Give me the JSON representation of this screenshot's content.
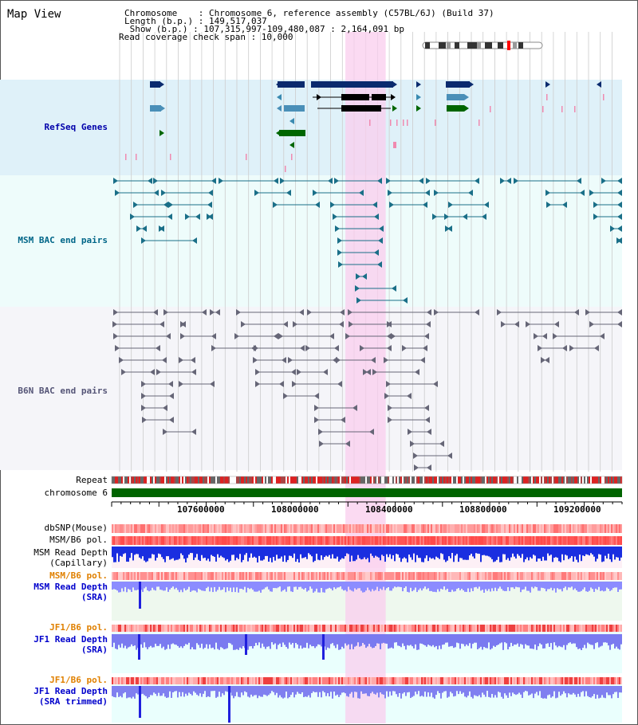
{
  "view": {
    "title": "Map View",
    "header_lines": [
      "Chromosome    : Chromosome 6, reference assembly (C57BL/6J) (Build 37)",
      "Length (b.p.) : 149,517,037",
      " Show (b.p.) : 107,315,997-109,480,087 : 2,164,091 bp",
      "Read coverage check span : 10,000"
    ],
    "range": {
      "start": 107315997,
      "end": 109480087
    },
    "highlight": {
      "start": 108307000,
      "end": 108478000
    }
  },
  "tracks": {
    "refseq": {
      "label": "RefSeq Genes",
      "color": "#0000aa"
    },
    "msm_bac": {
      "label": "MSM BAC end pairs",
      "color": "#006688"
    },
    "b6n_bac": {
      "label": "B6N BAC end pairs",
      "color": "#555577"
    },
    "repeat": {
      "label": "Repeat"
    },
    "chromosome": {
      "label": "chromosome 6"
    },
    "dbsnp": {
      "label": "dbSNP(Mouse)"
    },
    "msm_b6_pol_1": {
      "label": "MSM/B6 pol."
    },
    "msm_depth_cap": {
      "label1": "MSM Read Depth",
      "label2": "(Capillary)"
    },
    "msm_b6_pol_2": {
      "label": "MSM/B6 pol.",
      "color": "#e08000"
    },
    "msm_depth_sra": {
      "label1": "MSM Read Depth",
      "label2": "(SRA)",
      "color": "#0000cc"
    },
    "jf1_b6_pol_1": {
      "label": "JF1/B6 pol.",
      "color": "#e08000"
    },
    "jf1_depth_sra": {
      "label1": "JF1 Read Depth",
      "label2": "(SRA)",
      "color": "#0000cc"
    },
    "jf1_b6_pol_2": {
      "label": "JF1/B6 pol.",
      "color": "#e08000"
    },
    "jf1_depth_trim": {
      "label1": "JF1 Read Depth",
      "label2": "(SRA trimmed)",
      "color": "#0000cc"
    }
  },
  "axis_ticks": [
    "107600000",
    "108000000",
    "108400000",
    "108800000",
    "109200000"
  ]
}
